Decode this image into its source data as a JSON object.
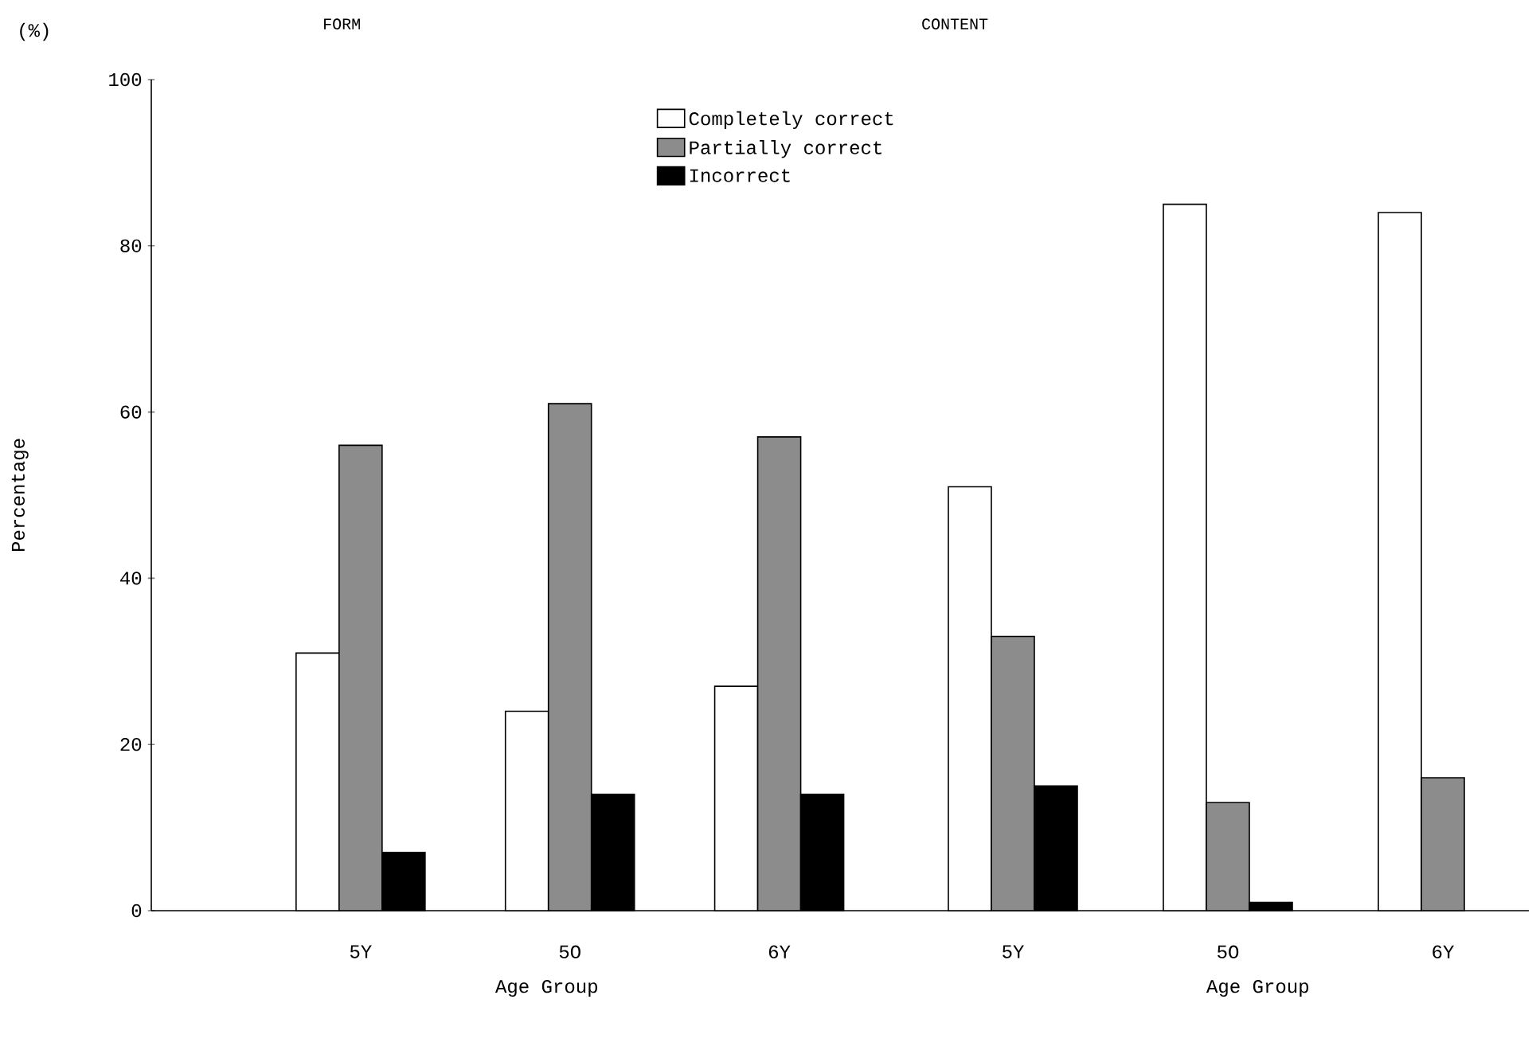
{
  "chart_data": [
    {
      "type": "bar",
      "title": "FORM",
      "xlabel": "Age Group",
      "ylabel": "Percentage",
      "annotations": [
        "(%)"
      ],
      "categories": [
        "5Y",
        "5O",
        "6Y"
      ],
      "ylim": [
        0,
        100
      ],
      "yticks": [
        0,
        20,
        40,
        60,
        80,
        100
      ],
      "series": [
        {
          "color": "#ffffff",
          "values": [
            31,
            24,
            27
          ]
        },
        {
          "color": "#8c8c8c",
          "values": [
            56,
            61,
            57
          ]
        },
        {
          "color": "#000000",
          "values": [
            7,
            14,
            14
          ]
        }
      ]
    },
    {
      "type": "bar",
      "title": "CONTENT",
      "xlabel": "Age Group",
      "categories": [
        "5Y",
        "5O",
        "6Y"
      ],
      "ylim": [
        0,
        100
      ],
      "yticks": [
        0,
        20,
        40,
        60,
        80,
        100
      ],
      "tick_labels": "x",
      "legend": "top left",
      "series": [
        {
          "name": "Completely correct",
          "color": "#ffffff",
          "values": [
            51,
            85,
            84
          ]
        },
        {
          "name": "Partially correct",
          "color": "#8c8c8c",
          "values": [
            33,
            13,
            16
          ]
        },
        {
          "name": "Incorrect",
          "color": "#000000",
          "values": [
            15,
            1,
            null
          ]
        }
      ]
    }
  ]
}
